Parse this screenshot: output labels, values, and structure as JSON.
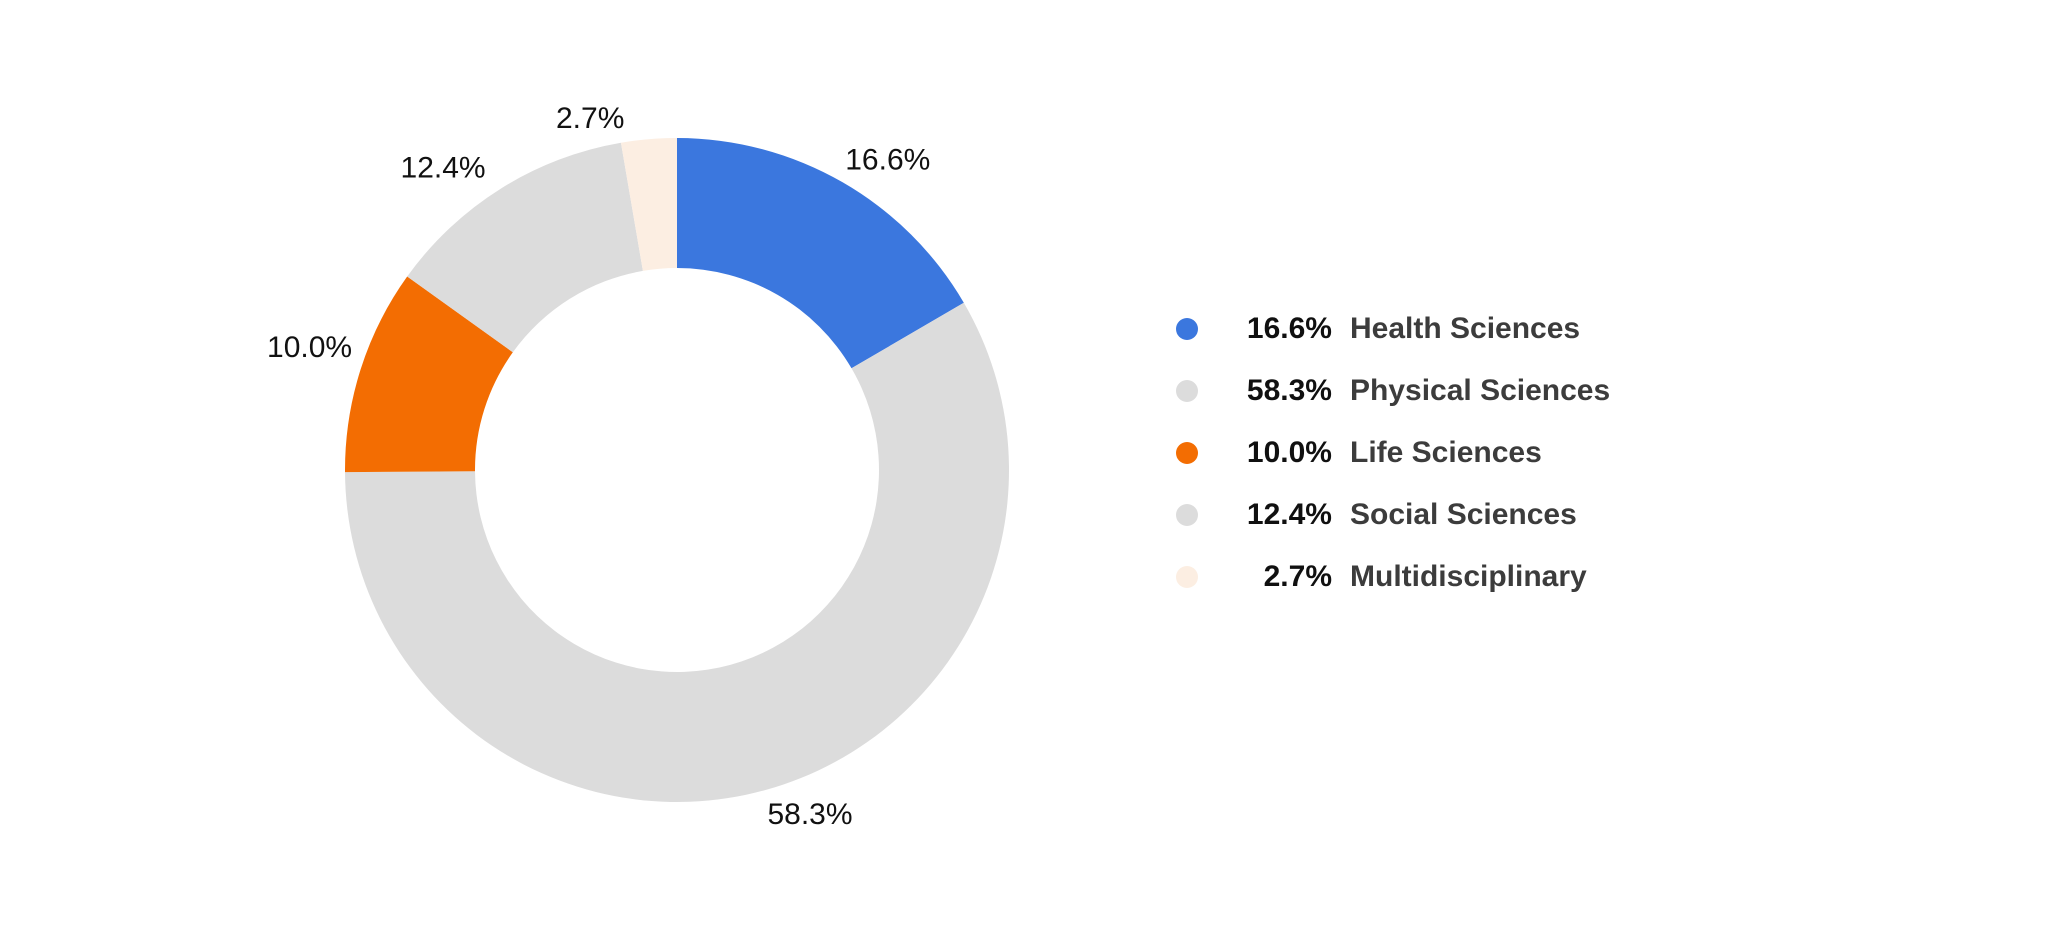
{
  "chart_data": {
    "type": "pie",
    "subtype": "donut",
    "title": "",
    "unit": "%",
    "direction": "clockwise",
    "start_angle_deg": 0,
    "legend_position": "right",
    "slice_labels_shown": true,
    "slices": [
      {
        "label": "Health Sciences",
        "value": 16.6,
        "display": "16.6%",
        "color": "#3B77DE"
      },
      {
        "label": "Physical Sciences",
        "value": 58.3,
        "display": "58.3%",
        "color": "#DCDCDC"
      },
      {
        "label": "Life Sciences",
        "value": 10.0,
        "display": "10.0%",
        "color": "#F36D02"
      },
      {
        "label": "Social Sciences",
        "value": 12.4,
        "display": "12.4%",
        "color": "#DCDCDC"
      },
      {
        "label": "Multidisciplinary",
        "value": 2.7,
        "display": "2.7%",
        "color": "#FCEEE2"
      }
    ],
    "colors": {
      "background": "#FFFFFF",
      "slice_label_text": "#111111",
      "legend_percent_text": "#101010",
      "legend_label_text": "#3C3C3C"
    }
  }
}
